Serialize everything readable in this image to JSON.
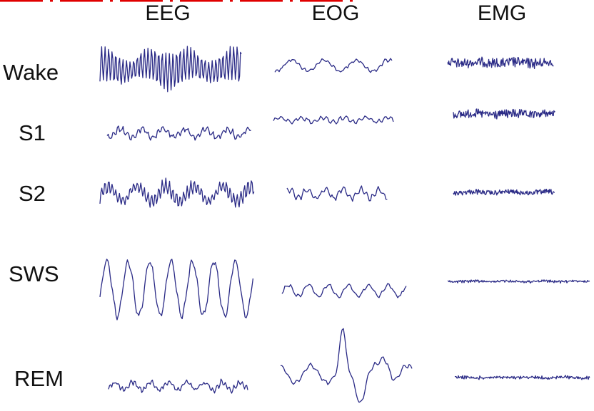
{
  "columns": [
    "EEG",
    "EOG",
    "EMG"
  ],
  "rows": [
    "Wake",
    "S1",
    "S2",
    "SWS",
    "REM"
  ]
}
